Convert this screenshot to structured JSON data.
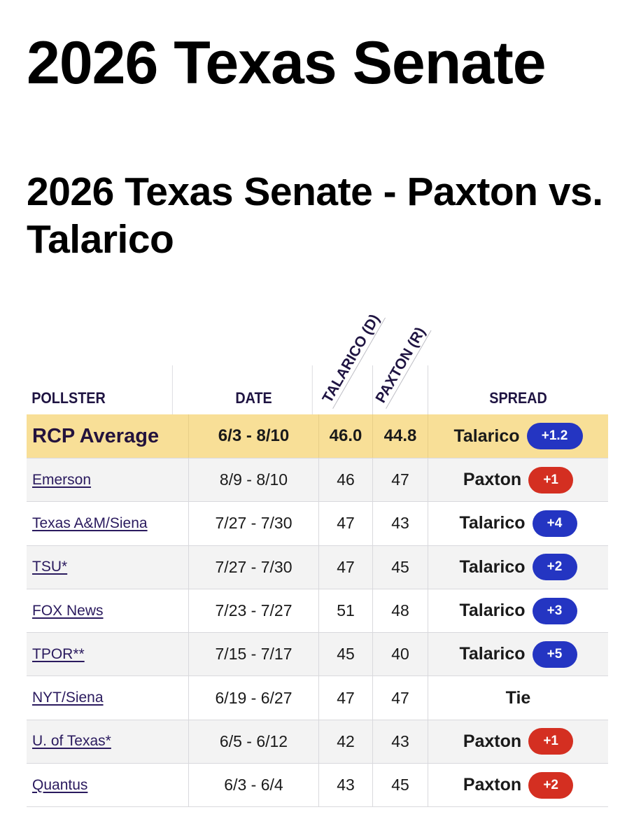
{
  "page_title": "2026 Texas Senate",
  "subtitle": "2026 Texas Senate - Paxton vs. Talarico",
  "colors": {
    "democrat": "#2435c2",
    "republican": "#d42f21",
    "average_row": "#f8df97"
  },
  "table": {
    "headers": {
      "pollster": "POLLSTER",
      "date": "DATE",
      "talarico": "TALARICO (D)",
      "paxton": "PAXTON (R)",
      "spread": "SPREAD"
    },
    "average": {
      "pollster": "RCP Average",
      "date": "6/3 - 8/10",
      "talarico": "46.0",
      "paxton": "44.8",
      "spread_name": "Talarico",
      "spread_value": "+1.2"
    },
    "rows": [
      {
        "pollster": "Emerson",
        "date": "8/9 - 8/10",
        "talarico": "46",
        "paxton": "47",
        "spread_name": "Paxton",
        "spread_value": "+1"
      },
      {
        "pollster": "Texas A&M/Siena",
        "date": "7/27 - 7/30",
        "talarico": "47",
        "paxton": "43",
        "spread_name": "Talarico",
        "spread_value": "+4"
      },
      {
        "pollster": "TSU*",
        "date": "7/27 - 7/30",
        "talarico": "47",
        "paxton": "45",
        "spread_name": "Talarico",
        "spread_value": "+2"
      },
      {
        "pollster": "FOX News",
        "date": "7/23 - 7/27",
        "talarico": "51",
        "paxton": "48",
        "spread_name": "Talarico",
        "spread_value": "+3"
      },
      {
        "pollster": "TPOR**",
        "date": "7/15 - 7/17",
        "talarico": "45",
        "paxton": "40",
        "spread_name": "Talarico",
        "spread_value": "+5"
      },
      {
        "pollster": "NYT/Siena",
        "date": "6/19 - 6/27",
        "talarico": "47",
        "paxton": "47",
        "spread_name": "Tie",
        "spread_value": ""
      },
      {
        "pollster": "U. of Texas*",
        "date": "6/5 - 6/12",
        "talarico": "42",
        "paxton": "43",
        "spread_name": "Paxton",
        "spread_value": "+1"
      },
      {
        "pollster": "Quantus",
        "date": "6/3 - 6/4",
        "talarico": "43",
        "paxton": "45",
        "spread_name": "Paxton",
        "spread_value": "+2"
      }
    ]
  }
}
